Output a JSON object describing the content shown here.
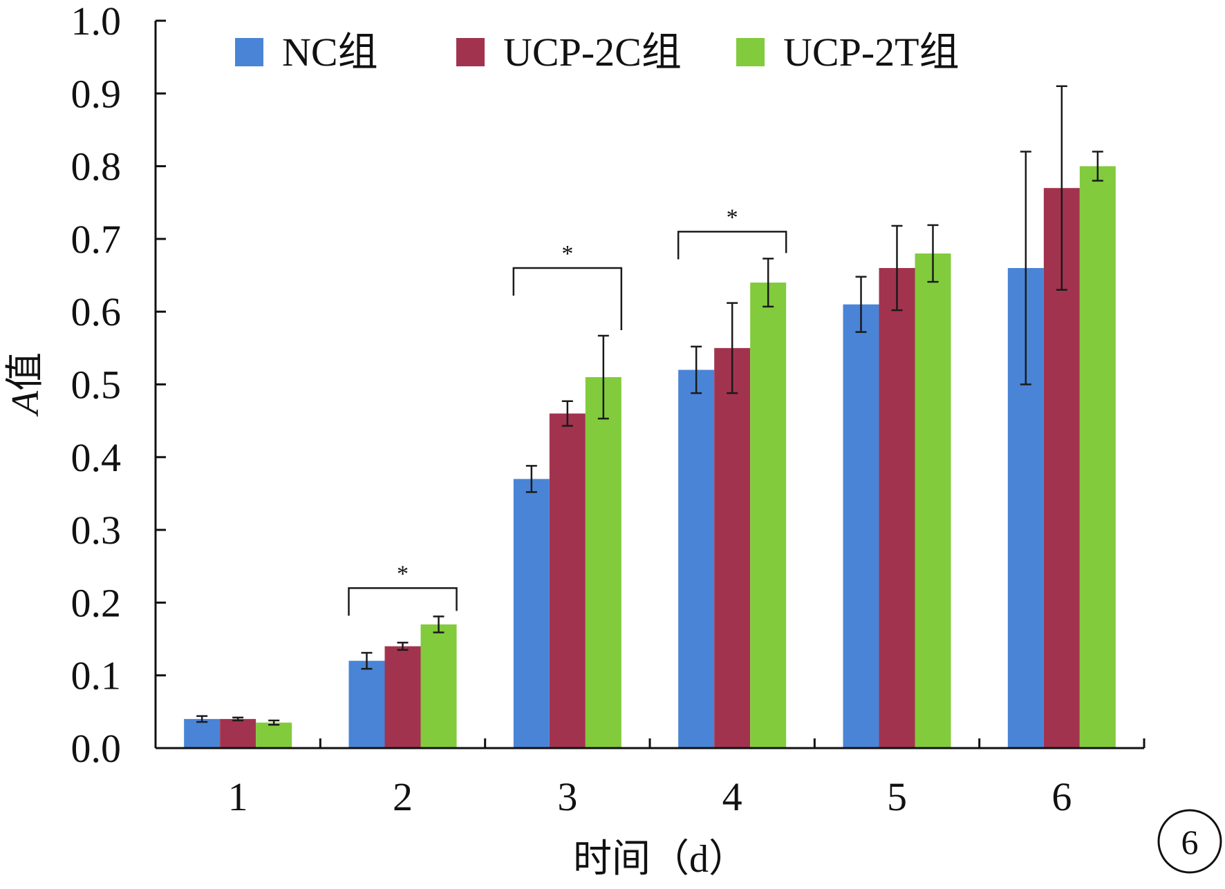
{
  "chart_data": {
    "type": "bar",
    "xlabel": "时间（d）",
    "ylabel": "A值",
    "ylabel_italic_part": "A",
    "ylabel_rest": "值",
    "ylim": [
      0,
      1.0
    ],
    "y_ticks": [
      "0.0",
      "0.1",
      "0.2",
      "0.3",
      "0.4",
      "0.5",
      "0.6",
      "0.7",
      "0.8",
      "0.9",
      "1.0"
    ],
    "categories": [
      "1",
      "2",
      "3",
      "4",
      "5",
      "6"
    ],
    "legend_position": "top",
    "grid": false,
    "series": [
      {
        "name": "NC组",
        "color": "#4a84d6",
        "values": [
          0.04,
          0.12,
          0.37,
          0.52,
          0.61,
          0.66
        ],
        "errors": [
          0.004,
          0.011,
          0.018,
          0.032,
          0.038,
          0.16
        ]
      },
      {
        "name": "UCP-2C组",
        "color": "#a2334e",
        "values": [
          0.04,
          0.14,
          0.46,
          0.55,
          0.66,
          0.77
        ],
        "errors": [
          0.002,
          0.005,
          0.017,
          0.062,
          0.058,
          0.14
        ]
      },
      {
        "name": "UCP-2T组",
        "color": "#82cb3d",
        "values": [
          0.035,
          0.17,
          0.51,
          0.64,
          0.68,
          0.8
        ],
        "errors": [
          0.003,
          0.011,
          0.057,
          0.033,
          0.039,
          0.02
        ]
      }
    ],
    "annotations": [
      {
        "category": "2",
        "text": "*",
        "y": 0.22
      },
      {
        "category": "3",
        "text": "*",
        "y": 0.66
      },
      {
        "category": "4",
        "text": "*",
        "y": 0.71
      }
    ]
  },
  "figure_badge": "6"
}
